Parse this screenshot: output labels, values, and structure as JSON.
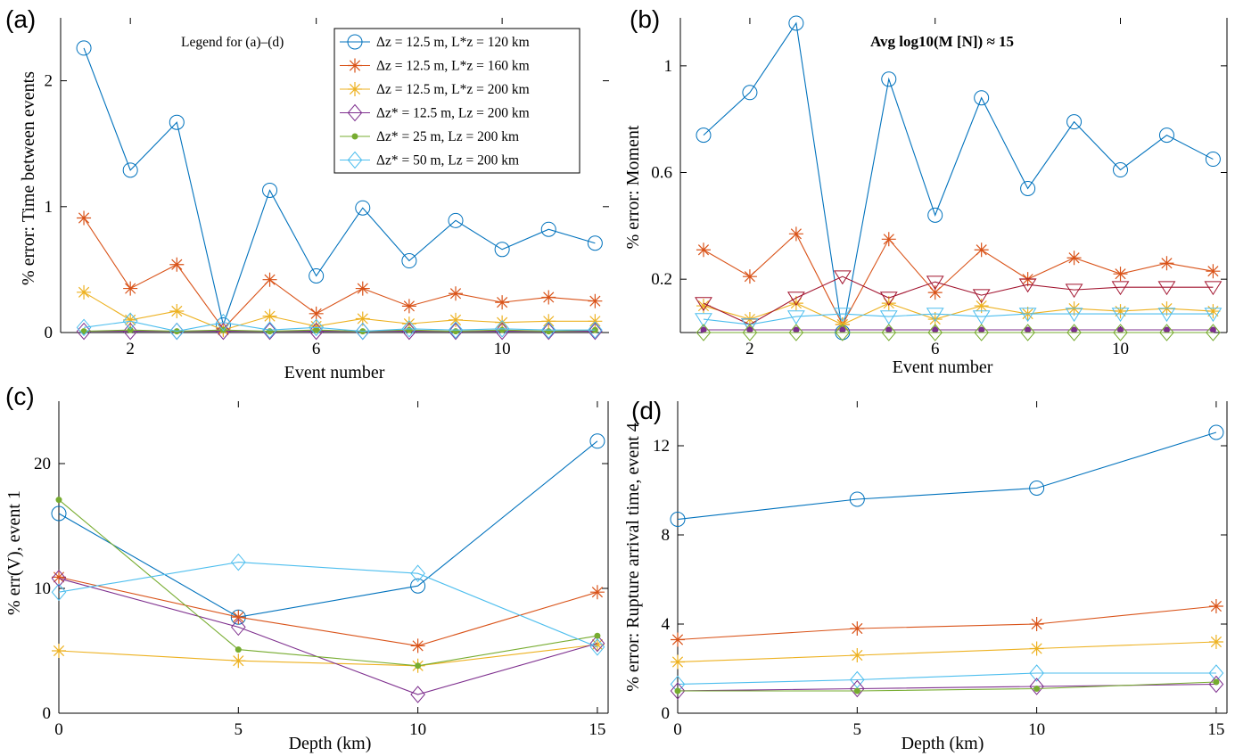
{
  "colors": {
    "blue": "#0072BD",
    "orange": "#D95319",
    "yellow": "#EDB120",
    "purple": "#7E2F8E",
    "green": "#77AC30",
    "cyan": "#4DBEEE",
    "maroon": "#A2142F"
  },
  "legend": {
    "title": "Legend for (a)–(d)",
    "entries": [
      {
        "label": "Δz = 12.5 m,  L*z = 120 km",
        "color": "#0072BD",
        "marker": "circle"
      },
      {
        "label": "Δz = 12.5 m,  L*z = 160 km",
        "color": "#D95319",
        "marker": "star"
      },
      {
        "label": "Δz = 12.5 m,  L*z = 200 km",
        "color": "#EDB120",
        "marker": "star"
      },
      {
        "label": "Δz* = 12.5 m,  Lz = 200 km",
        "color": "#7E2F8E",
        "marker": "diamond"
      },
      {
        "label": "Δz* = 25 m,  Lz = 200 km",
        "color": "#77AC30",
        "marker": "dot"
      },
      {
        "label": "Δz* = 50 m,  Lz = 200 km",
        "color": "#4DBEEE",
        "marker": "diamond"
      }
    ]
  },
  "chart_data": [
    {
      "panel": "(a)",
      "type": "line",
      "xlabel": "Event number",
      "ylabel": "% error:  Time between events",
      "xlim": [
        0.5,
        12.3
      ],
      "ylim": [
        0,
        2.5
      ],
      "xticks": [
        2,
        6,
        10
      ],
      "yticks": [
        0,
        1,
        2
      ],
      "x": [
        1,
        2,
        3,
        4,
        5,
        6,
        7,
        8,
        9,
        10,
        11,
        12
      ],
      "series": [
        {
          "color": "#0072BD",
          "marker": "circle",
          "values": [
            2.26,
            1.29,
            1.67,
            0.06,
            1.13,
            0.45,
            0.99,
            0.57,
            0.89,
            0.66,
            0.82,
            0.71
          ]
        },
        {
          "color": "#D95319",
          "marker": "star",
          "values": [
            0.91,
            0.35,
            0.54,
            0.03,
            0.42,
            0.15,
            0.35,
            0.21,
            0.31,
            0.24,
            0.28,
            0.25
          ]
        },
        {
          "color": "#EDB120",
          "marker": "star",
          "values": [
            0.32,
            0.1,
            0.17,
            0.02,
            0.13,
            0.05,
            0.11,
            0.07,
            0.1,
            0.08,
            0.09,
            0.09
          ]
        },
        {
          "color": "#7E2F8E",
          "marker": "diamond",
          "values": [
            0.01,
            0.01,
            0.01,
            0.01,
            0.01,
            0.01,
            0.01,
            0.01,
            0.01,
            0.01,
            0.01,
            0.01
          ]
        },
        {
          "color": "#77AC30",
          "marker": "dot",
          "values": [
            0.01,
            0.02,
            0.01,
            0.02,
            0.01,
            0.02,
            0.01,
            0.02,
            0.01,
            0.02,
            0.01,
            0.02
          ]
        },
        {
          "color": "#4DBEEE",
          "marker": "diamond",
          "values": [
            0.04,
            0.09,
            0.01,
            0.08,
            0.02,
            0.04,
            0.01,
            0.03,
            0.02,
            0.03,
            0.02,
            0.02
          ]
        }
      ]
    },
    {
      "panel": "(b)",
      "type": "line",
      "annotation": "Avg log10(M [N])  ≈ 15",
      "xlabel": "Event number",
      "ylabel": "% error:  Moment",
      "xlim": [
        0.5,
        12.3
      ],
      "ylim": [
        0,
        1.18
      ],
      "xticks": [
        2,
        6,
        10
      ],
      "yticks": [
        0.2,
        0.6,
        1
      ],
      "x": [
        1,
        2,
        3,
        4,
        5,
        6,
        7,
        8,
        9,
        10,
        11,
        12
      ],
      "series": [
        {
          "color": "#0072BD",
          "marker": "circle",
          "values": [
            0.74,
            0.9,
            1.16,
            0.0,
            0.95,
            0.44,
            0.88,
            0.54,
            0.79,
            0.61,
            0.74,
            0.65
          ]
        },
        {
          "color": "#D95319",
          "marker": "star",
          "values": [
            0.31,
            0.21,
            0.37,
            0.03,
            0.35,
            0.15,
            0.31,
            0.2,
            0.28,
            0.22,
            0.26,
            0.23
          ]
        },
        {
          "color": "#EDB120",
          "marker": "star",
          "values": [
            0.1,
            0.05,
            0.11,
            0.03,
            0.11,
            0.05,
            0.1,
            0.07,
            0.09,
            0.08,
            0.09,
            0.08
          ]
        },
        {
          "color": "#A2142F",
          "marker": "triangle-down",
          "values": [
            0.11,
            0.03,
            0.13,
            0.21,
            0.13,
            0.19,
            0.14,
            0.18,
            0.16,
            0.17,
            0.17,
            0.17
          ]
        },
        {
          "color": "#4DBEEE",
          "marker": "triangle-down",
          "values": [
            0.05,
            0.03,
            0.06,
            0.07,
            0.06,
            0.07,
            0.06,
            0.07,
            0.07,
            0.07,
            0.07,
            0.07
          ]
        },
        {
          "color": "#7E2F8E",
          "marker": "dot",
          "values": [
            0.01,
            0.01,
            0.01,
            0.01,
            0.01,
            0.01,
            0.01,
            0.01,
            0.01,
            0.01,
            0.01,
            0.01
          ]
        },
        {
          "color": "#77AC30",
          "marker": "diamond",
          "values": [
            0.0,
            0.0,
            0.0,
            0.0,
            0.0,
            0.0,
            0.0,
            0.0,
            0.0,
            0.0,
            0.0,
            0.0
          ]
        }
      ]
    },
    {
      "panel": "(c)",
      "type": "line",
      "xlabel": "Depth (km)",
      "ylabel": "% err(V), event 1",
      "xlim": [
        0,
        15.3
      ],
      "ylim": [
        0,
        25
      ],
      "xticks": [
        0,
        5,
        10,
        15
      ],
      "yticks": [
        0,
        10,
        20
      ],
      "x": [
        0,
        5,
        10,
        15
      ],
      "series": [
        {
          "color": "#0072BD",
          "marker": "circle",
          "values": [
            16.0,
            7.7,
            10.2,
            21.8
          ]
        },
        {
          "color": "#D95319",
          "marker": "star",
          "values": [
            10.9,
            7.7,
            5.4,
            9.7
          ]
        },
        {
          "color": "#EDB120",
          "marker": "star",
          "values": [
            5.0,
            4.2,
            3.8,
            5.5
          ]
        },
        {
          "color": "#7E2F8E",
          "marker": "diamond",
          "values": [
            10.8,
            6.9,
            1.5,
            5.6
          ]
        },
        {
          "color": "#77AC30",
          "marker": "dot",
          "values": [
            17.1,
            5.1,
            3.8,
            6.2
          ]
        },
        {
          "color": "#4DBEEE",
          "marker": "diamond",
          "values": [
            9.7,
            12.1,
            11.2,
            5.3
          ]
        }
      ]
    },
    {
      "panel": "(d)",
      "type": "line",
      "xlabel": "Depth (km)",
      "ylabel": "% error:  Rupture arrival time, event 4",
      "xlim": [
        0,
        15.3
      ],
      "ylim": [
        0,
        14
      ],
      "xticks": [
        0,
        5,
        10,
        15
      ],
      "yticks": [
        0,
        4,
        8,
        12
      ],
      "x": [
        0,
        5,
        10,
        15
      ],
      "series": [
        {
          "color": "#0072BD",
          "marker": "circle",
          "values": [
            8.7,
            9.6,
            10.1,
            12.6
          ]
        },
        {
          "color": "#D95319",
          "marker": "star",
          "values": [
            3.3,
            3.8,
            4.0,
            4.8
          ]
        },
        {
          "color": "#EDB120",
          "marker": "star",
          "values": [
            2.3,
            2.6,
            2.9,
            3.2
          ]
        },
        {
          "color": "#4DBEEE",
          "marker": "diamond",
          "values": [
            1.3,
            1.5,
            1.8,
            1.8
          ]
        },
        {
          "color": "#7E2F8E",
          "marker": "diamond",
          "values": [
            1.0,
            1.1,
            1.2,
            1.3
          ]
        },
        {
          "color": "#77AC30",
          "marker": "dot",
          "values": [
            1.0,
            1.0,
            1.1,
            1.4
          ]
        }
      ]
    }
  ]
}
